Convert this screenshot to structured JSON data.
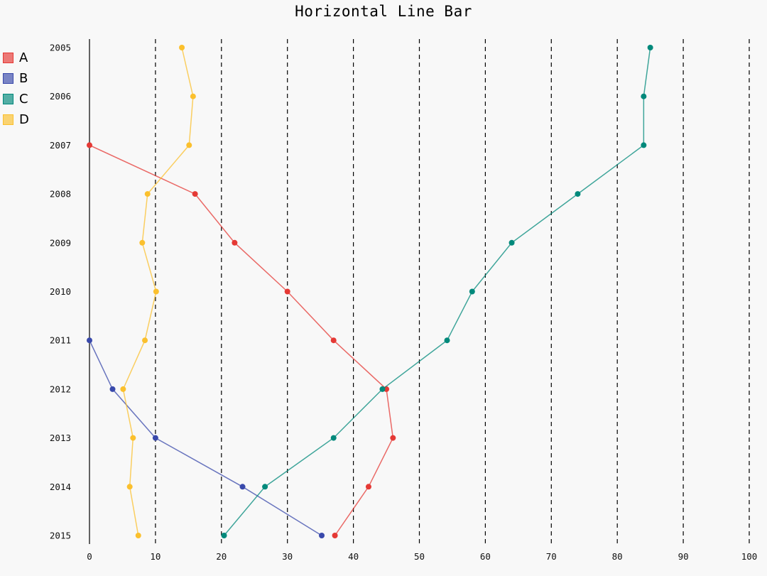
{
  "chart_data": {
    "type": "line",
    "orientation": "horizontal",
    "title": "Horizontal Line Bar",
    "categories": [
      "2005",
      "2006",
      "2007",
      "2008",
      "2009",
      "2010",
      "2011",
      "2012",
      "2013",
      "2014",
      "2015"
    ],
    "xlim": [
      0,
      100
    ],
    "x_ticks": [
      "0",
      "10",
      "20",
      "30",
      "40",
      "50",
      "60",
      "70",
      "80",
      "90",
      "100"
    ],
    "grid": "vertical dashed",
    "legend_position": "top-left",
    "series": [
      {
        "name": "A",
        "color": "#e53935",
        "values": [
          null,
          null,
          0,
          16,
          22,
          30,
          37,
          45,
          46,
          42.3,
          37.2
        ]
      },
      {
        "name": "B",
        "color": "#3949ab",
        "values": [
          null,
          null,
          null,
          null,
          null,
          null,
          0,
          3.5,
          10,
          23.2,
          35.2
        ]
      },
      {
        "name": "C",
        "color": "#00897b",
        "values": [
          85,
          84,
          84,
          74,
          64,
          58,
          54.2,
          44.4,
          37,
          26.6,
          20.4
        ]
      },
      {
        "name": "D",
        "color": "#fbc02d",
        "values": [
          14,
          15.7,
          15.1,
          8.8,
          8,
          10.1,
          8.4,
          5.1,
          6.6,
          6.1,
          7.4
        ]
      }
    ]
  }
}
